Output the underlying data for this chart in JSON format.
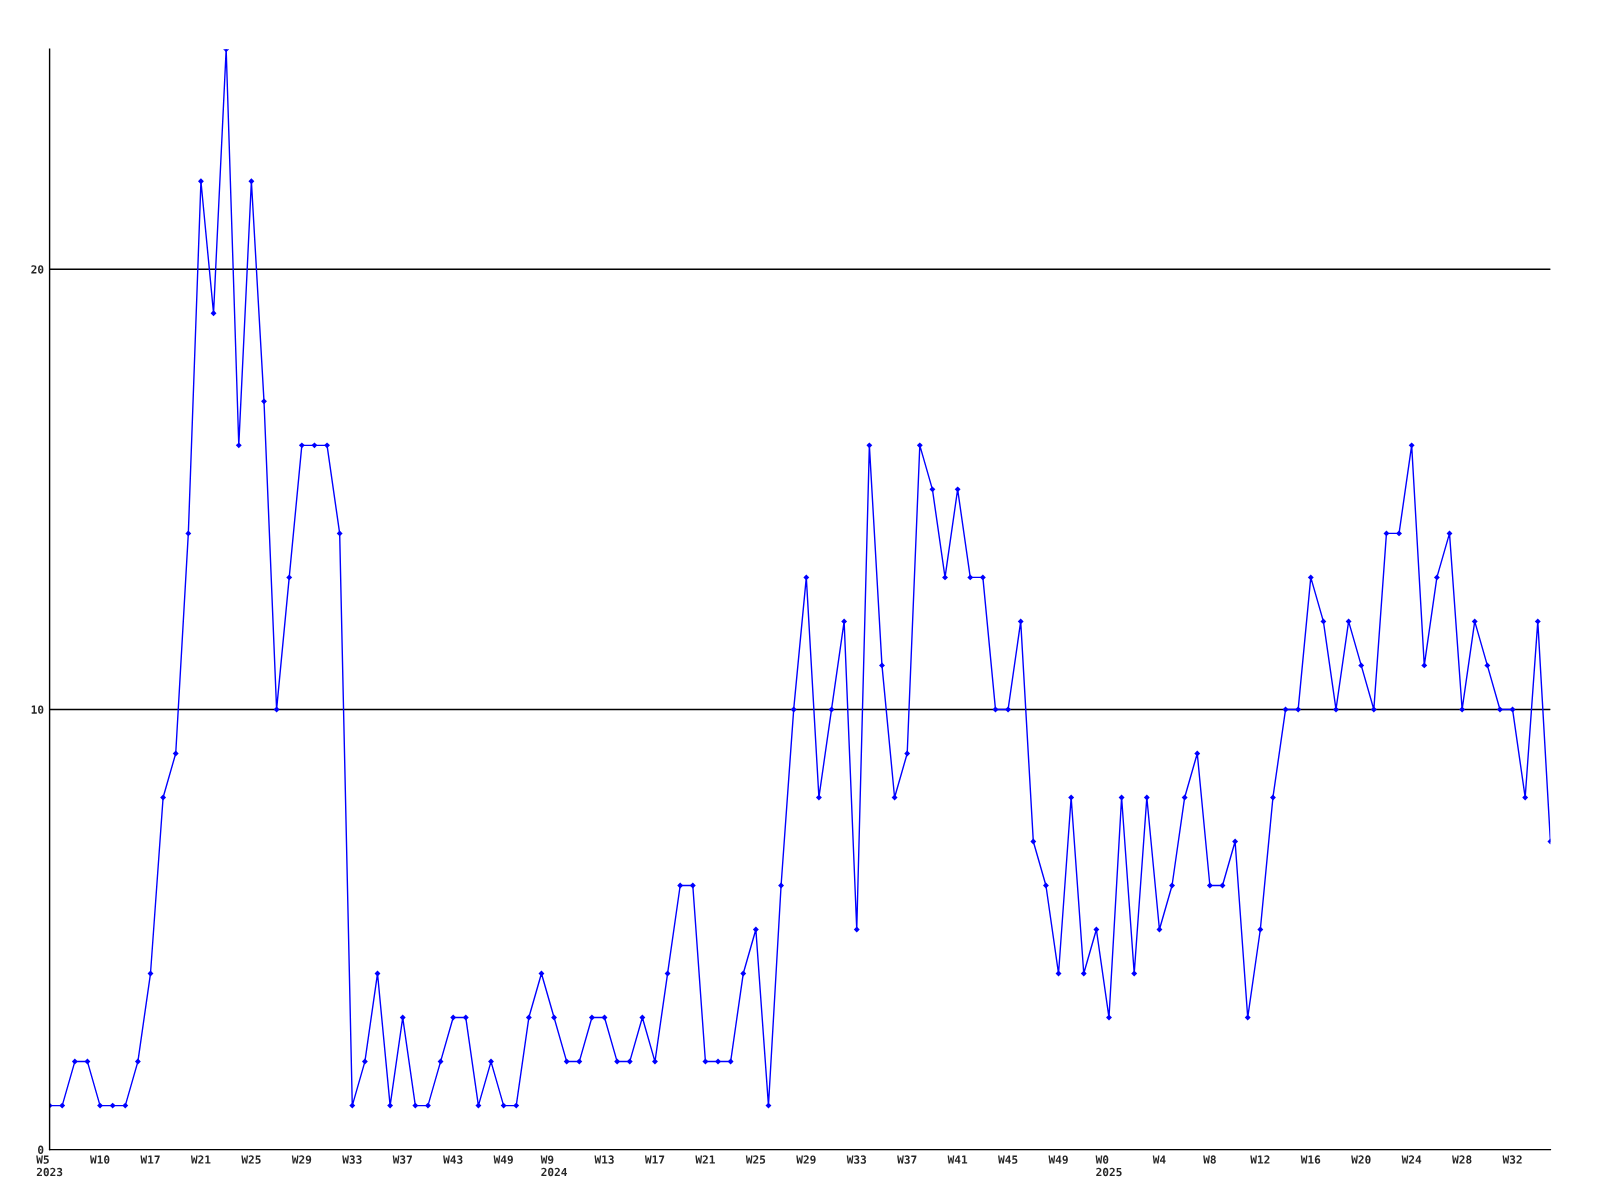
{
  "chart_data": {
    "type": "line",
    "categories": [
      "W5\n2023",
      null,
      null,
      null,
      "W10",
      null,
      null,
      null,
      "W17",
      null,
      null,
      null,
      "W21",
      null,
      null,
      null,
      "W25",
      null,
      null,
      null,
      "W29",
      null,
      null,
      null,
      "W33",
      null,
      null,
      null,
      "W37",
      null,
      null,
      null,
      "W43",
      null,
      null,
      null,
      "W49",
      null,
      null,
      null,
      "W9\n2024",
      null,
      null,
      null,
      "W13",
      null,
      null,
      null,
      "W17",
      null,
      null,
      null,
      "W21",
      null,
      null,
      null,
      "W25",
      null,
      null,
      null,
      "W29",
      null,
      null,
      null,
      "W33",
      null,
      null,
      null,
      "W37",
      null,
      null,
      null,
      "W41",
      null,
      null,
      null,
      "W45",
      null,
      null,
      null,
      "W49",
      null,
      null,
      null,
      "W0\n2025",
      null,
      null,
      null,
      "W4",
      null,
      null,
      null,
      "W8",
      null,
      null,
      null,
      "W12",
      null,
      null,
      null,
      "W16",
      null,
      null,
      null,
      "W20",
      null,
      null,
      null,
      "W24",
      null,
      null,
      null,
      "W28",
      null,
      null,
      null,
      "W32",
      null,
      null,
      null
    ],
    "series": [
      {
        "color": "#0000ff",
        "values": [
          1,
          1,
          2,
          2,
          1,
          1,
          1,
          2,
          4,
          8,
          9,
          14,
          22,
          19,
          25,
          16,
          22,
          17,
          10,
          13,
          16,
          16,
          16,
          14,
          1,
          2,
          4,
          1,
          3,
          1,
          1,
          2,
          3,
          3,
          1,
          2,
          1,
          1,
          3,
          4,
          3,
          2,
          2,
          3,
          3,
          2,
          2,
          3,
          2,
          4,
          6,
          6,
          2,
          2,
          2,
          4,
          5,
          1,
          6,
          10,
          13,
          8,
          10,
          12,
          5,
          16,
          11,
          8,
          9,
          16,
          15,
          13,
          15,
          13,
          13,
          10,
          10,
          12,
          7,
          6,
          4,
          8,
          4,
          5,
          3,
          8,
          4,
          8,
          5,
          6,
          8,
          9,
          6,
          6,
          7,
          3,
          5,
          8,
          10,
          10,
          13,
          12,
          10,
          12,
          11,
          10,
          14,
          14,
          16,
          11,
          13,
          14,
          10,
          12,
          11,
          10,
          10,
          8,
          12,
          7
        ]
      }
    ],
    "ylim": [
      0,
      25
    ],
    "yticks": [
      0,
      10,
      20
    ],
    "grid": "y",
    "marker": "diamond",
    "line_style": "solid"
  }
}
